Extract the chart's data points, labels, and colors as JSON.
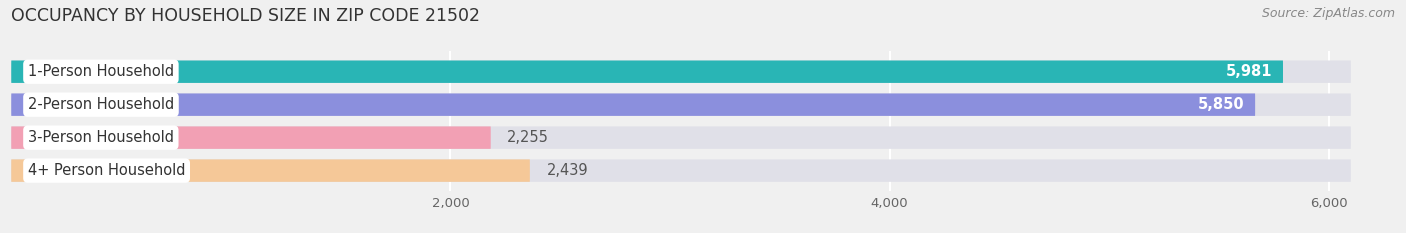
{
  "title": "OCCUPANCY BY HOUSEHOLD SIZE IN ZIP CODE 21502",
  "source": "Source: ZipAtlas.com",
  "categories": [
    "1-Person Household",
    "2-Person Household",
    "3-Person Household",
    "4+ Person Household"
  ],
  "values": [
    5981,
    5850,
    2255,
    2439
  ],
  "bar_colors": [
    "#29b5b5",
    "#8b8fdd",
    "#f2a0b4",
    "#f5c898"
  ],
  "background_color": "#f0f0f0",
  "bar_bg_color": "#e0e0e8",
  "xlim_max": 6300,
  "bar_bg_max": 6100,
  "xticks": [
    2000,
    4000,
    6000
  ],
  "xtick_labels": [
    "2,000",
    "4,000",
    "6,000"
  ],
  "bar_height": 0.68,
  "value_label_fontsize": 10.5,
  "category_label_fontsize": 10.5,
  "title_fontsize": 12.5,
  "source_fontsize": 9
}
